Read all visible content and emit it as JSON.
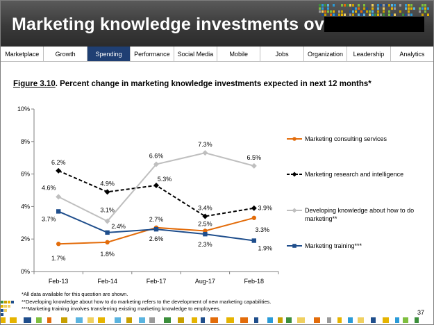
{
  "header": {
    "title": "Marketing knowledge investments over time"
  },
  "nav": {
    "tabs": [
      {
        "label": "Marketplace",
        "active": false
      },
      {
        "label": "Growth",
        "active": false
      },
      {
        "label": "Spending",
        "active": true
      },
      {
        "label": "Performance",
        "active": false
      },
      {
        "label": "Social Media",
        "active": false
      },
      {
        "label": "Mobile",
        "active": false
      },
      {
        "label": "Jobs",
        "active": false
      },
      {
        "label": "Organization",
        "active": false
      },
      {
        "label": "Leadership",
        "active": false
      },
      {
        "label": "Analytics",
        "active": false
      }
    ],
    "active_color": "#1f3f73"
  },
  "figure": {
    "number": "Figure 3.10",
    "title": ". Percent change in marketing knowledge investments expected in next 12 months*"
  },
  "chart_data": {
    "type": "line",
    "title": "",
    "xlabel": "",
    "ylabel": "",
    "categories": [
      "Feb-13",
      "Feb-14",
      "Feb-17",
      "Aug-17",
      "Feb-18"
    ],
    "ylim": [
      0,
      10
    ],
    "yticks": [
      0,
      2,
      4,
      6,
      8,
      10
    ],
    "ytick_labels": [
      "0%",
      "2%",
      "4%",
      "6%",
      "8%",
      "10%"
    ],
    "grid": false,
    "legend_position": "right",
    "series": [
      {
        "name": "Marketing consulting services",
        "values": [
          1.7,
          1.8,
          2.7,
          2.5,
          3.3
        ],
        "labels": [
          "1.7%",
          "1.8%",
          "2.7%",
          "2.5%",
          "3.3%"
        ],
        "color": "#e36c0a",
        "marker": "circle",
        "dashed": false
      },
      {
        "name": "Marketing research and intelligence",
        "values": [
          6.2,
          4.9,
          5.3,
          3.4,
          3.9
        ],
        "labels": [
          "6.2%",
          "4.9%",
          "5.3%",
          "3.4%",
          "3.9%"
        ],
        "color": "#000000",
        "marker": "diamond",
        "dashed": true
      },
      {
        "name": "Developing knowledge about how to do marketing**",
        "values": [
          4.6,
          3.1,
          6.6,
          7.3,
          6.5
        ],
        "labels": [
          "4.6%",
          "3.1%",
          "6.6%",
          "7.3%",
          "6.5%"
        ],
        "color": "#bfbfbf",
        "marker": "diamond",
        "dashed": false
      },
      {
        "name": "Marketing training***",
        "values": [
          3.7,
          2.4,
          2.6,
          2.3,
          1.9
        ],
        "labels": [
          "3.7%",
          "2.4%",
          "2.6%",
          "2.3%",
          "1.9%"
        ],
        "color": "#1f4e8c",
        "marker": "square",
        "dashed": false
      }
    ]
  },
  "footnotes": [
    "*All data available for this question are shown.",
    "**Developing knowledge about how to do marketing refers to the development of new marketing capabilities.",
    "***Marketing training involves transferring existing marketing knowledge to employees."
  ],
  "page": {
    "number": "37"
  }
}
